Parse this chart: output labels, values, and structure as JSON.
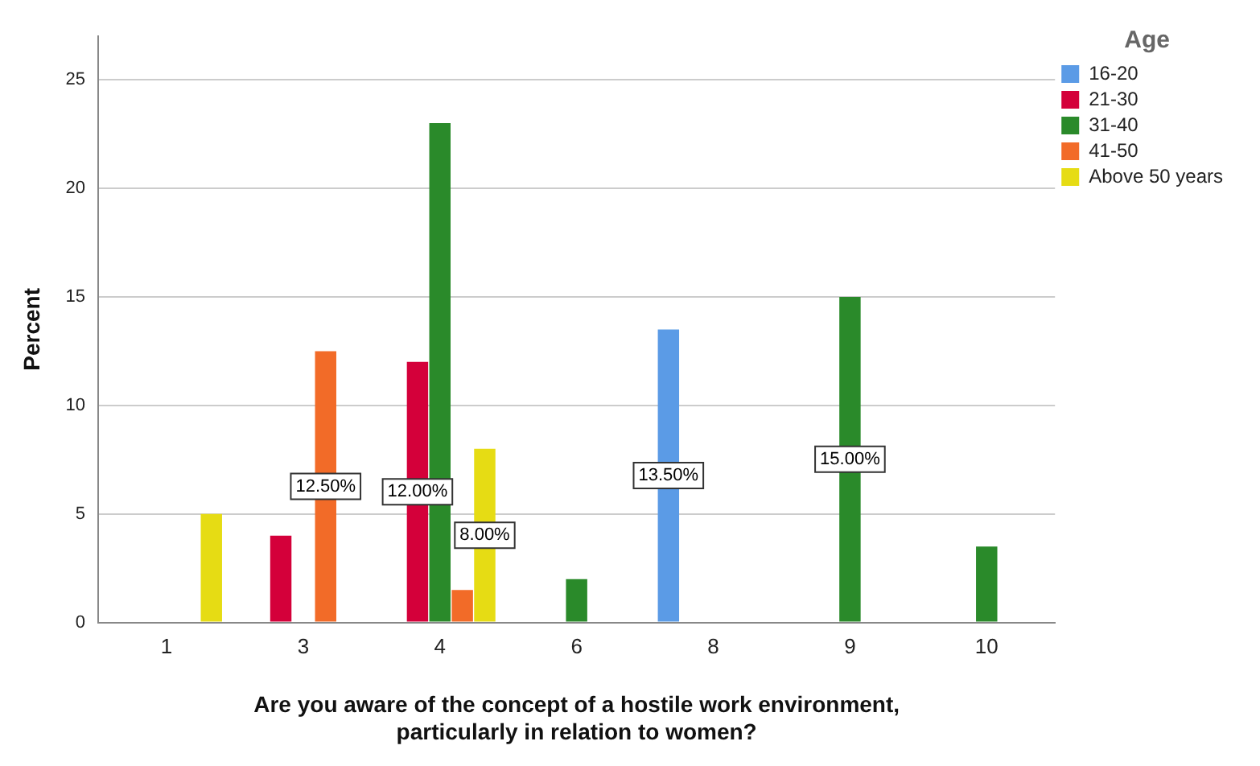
{
  "chart_data": {
    "type": "bar",
    "xlabel": "Are you aware of the concept of a hostile work environment,\nparticularly in relation to women?",
    "ylabel": "Percent",
    "legend_title": "Age",
    "categories": [
      "1",
      "3",
      "4",
      "6",
      "8",
      "9",
      "10"
    ],
    "series": [
      {
        "name": "16-20",
        "color": "#5b9be6",
        "values": [
          null,
          null,
          null,
          null,
          13.5,
          null,
          null
        ],
        "value_labels": [
          null,
          null,
          null,
          null,
          "13.50%",
          null,
          null
        ]
      },
      {
        "name": "21-30",
        "color": "#d4003a",
        "values": [
          null,
          4,
          12,
          null,
          null,
          null,
          null
        ],
        "value_labels": [
          null,
          null,
          "12.00%",
          null,
          null,
          null,
          null
        ]
      },
      {
        "name": "31-40",
        "color": "#2a8a2a",
        "values": [
          null,
          null,
          23,
          2,
          null,
          15,
          3.5
        ],
        "value_labels": [
          null,
          null,
          null,
          null,
          null,
          "15.00%",
          null
        ]
      },
      {
        "name": "41-50",
        "color": "#f26b28",
        "values": [
          null,
          12.5,
          1.5,
          null,
          null,
          null,
          null
        ],
        "value_labels": [
          null,
          "12.50%",
          null,
          null,
          null,
          null,
          null
        ]
      },
      {
        "name": "Above 50 years",
        "color": "#e6dc14",
        "values": [
          5,
          null,
          8,
          null,
          null,
          null,
          null
        ],
        "value_labels": [
          null,
          null,
          "8.00%",
          null,
          null,
          null,
          null
        ]
      }
    ],
    "ylim": [
      0,
      27
    ],
    "yticks": [
      0,
      5,
      10,
      15,
      20,
      25
    ],
    "grid": "y",
    "legend": "top right"
  }
}
